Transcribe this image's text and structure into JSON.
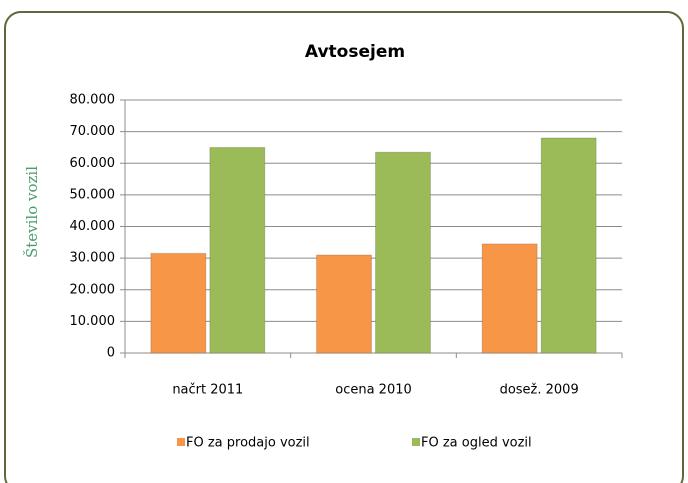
{
  "chart_data": {
    "type": "bar",
    "title": "Avtosejem",
    "y_label": "Število vozil",
    "categories": [
      "načrt 2011",
      "ocena 2010",
      "dosež. 2009"
    ],
    "series": [
      {
        "name": "FO za prodajo vozil",
        "color": "#f79646",
        "values": [
          31500,
          31000,
          34500
        ]
      },
      {
        "name": "FO za ogled vozil",
        "color": "#9bbb59",
        "values": [
          65000,
          63500,
          68000
        ]
      }
    ],
    "ylim": [
      0,
      80000
    ],
    "yticks": [
      0,
      {
        "value": 10000,
        "label": "10.000"
      },
      {
        "value": 20000,
        "label": "20.000"
      },
      {
        "value": 30000,
        "label": "30.000"
      },
      {
        "value": 40000,
        "label": "40.000"
      },
      {
        "value": 50000,
        "label": "50.000"
      },
      {
        "value": 60000,
        "label": "60.000"
      },
      {
        "value": 70000,
        "label": "70.000"
      },
      {
        "value": 80000,
        "label": "80.000"
      }
    ],
    "grid": true,
    "legend": "bottom"
  }
}
